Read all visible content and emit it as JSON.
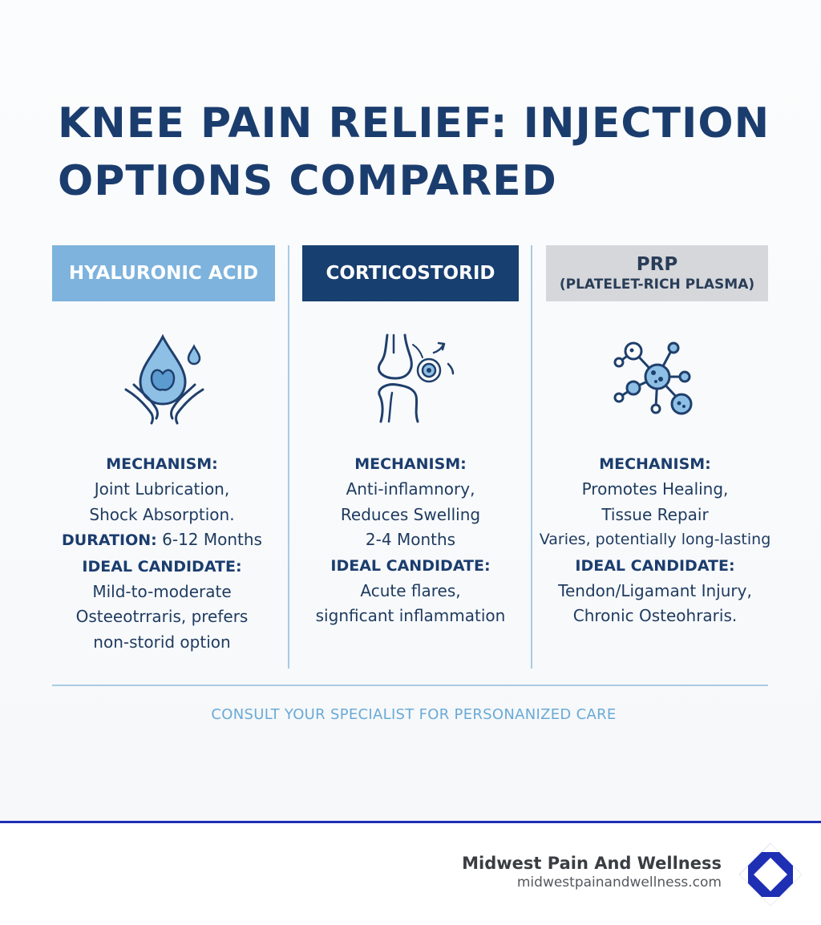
{
  "title": {
    "line1": "KNEE PAIN RELIEF: INJECTION",
    "line2": "OPTIONS COMPARED"
  },
  "columns": [
    {
      "header": "HYALURONIC ACID",
      "icon": "water-drop-hands-icon",
      "mechanism_label": "MECHANISM:",
      "mechanism_lines": [
        "Joint Lubrication,",
        "Shock Absorption."
      ],
      "duration_label": "DURATION:",
      "duration_value": "6-12 Months",
      "candidate_label": "IDEAL CANDIDATE:",
      "candidate_lines": [
        "Mild-to-moderate",
        "Osteeotrraris, prefers",
        "non-storid option"
      ]
    },
    {
      "header": "CORTICOSTORID",
      "icon": "knee-joint-inflammation-icon",
      "mechanism_label": "MECHANISM:",
      "mechanism_lines": [
        "Anti-inflamnory,",
        "Reduces Swelling"
      ],
      "duration_value": "2-4 Months",
      "candidate_label": "IDEAL CANDIDATE:",
      "candidate_lines": [
        "Acute flares,",
        "signficant inflammation"
      ]
    },
    {
      "header": "PRP",
      "subheader": "(PLATELET-RICH PLASMA)",
      "icon": "platelet-network-icon",
      "mechanism_label": "MECHANISM:",
      "mechanism_lines": [
        "Promotes Healing,",
        "Tissue Repair"
      ],
      "duration_value": "Varies, potentially long-lasting",
      "candidate_label": "IDEAL CANDIDATE:",
      "candidate_lines": [
        "Tendon/Ligamant Injury,",
        "Chronic Osteohraris."
      ]
    }
  ],
  "footnote": "CONSULT YOUR SPECIALIST FOR PERSONANIZED CARE",
  "brand": {
    "name": "Midwest Pain And Wellness",
    "url": "midwestpainandwellness.com",
    "logo_icon": "diamond-logo-icon"
  },
  "colors": {
    "title": "#1b3d6e",
    "ha_header": "#7db3dd",
    "cs_header": "#173f70",
    "prp_header": "#d5d7db",
    "accent_line": "#a8cbe5",
    "brand_blue": "#1f2fb4"
  }
}
